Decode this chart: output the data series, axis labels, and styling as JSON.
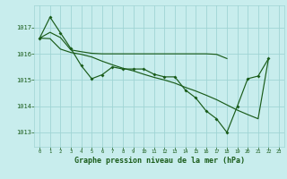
{
  "title": "Graphe pression niveau de la mer (hPa)",
  "bg_color": "#c8eded",
  "grid_color": "#a0d4d4",
  "line_color": "#1a5c1a",
  "xlim": [
    -0.5,
    23.5
  ],
  "ylim": [
    1012.45,
    1017.85
  ],
  "yticks": [
    1013,
    1014,
    1015,
    1016,
    1017
  ],
  "xticks": [
    0,
    1,
    2,
    3,
    4,
    5,
    6,
    7,
    8,
    9,
    10,
    11,
    12,
    13,
    14,
    15,
    16,
    17,
    18,
    19,
    20,
    21,
    22,
    23
  ],
  "series_main": [
    1016.6,
    1017.4,
    1016.8,
    1016.2,
    1015.55,
    1015.05,
    1015.2,
    1015.5,
    1015.42,
    1015.42,
    1015.42,
    1015.22,
    1015.12,
    1015.12,
    1014.62,
    1014.32,
    1013.82,
    1013.52,
    1013.0,
    1014.0,
    1015.05,
    1015.15,
    1015.82,
    null
  ],
  "series_flat": [
    1016.6,
    1016.82,
    1016.62,
    1016.15,
    1016.08,
    1016.02,
    1016.0,
    1016.0,
    1016.0,
    1016.0,
    1016.0,
    1016.0,
    1016.0,
    1016.0,
    1016.0,
    1016.0,
    1016.0,
    1015.98,
    1015.82,
    null,
    null,
    null,
    null,
    null
  ],
  "series_trend": [
    1016.6,
    1016.58,
    1016.18,
    1016.05,
    1015.98,
    1015.88,
    1015.72,
    1015.58,
    1015.45,
    1015.35,
    1015.22,
    1015.1,
    1015.0,
    1014.88,
    1014.72,
    1014.58,
    1014.42,
    1014.25,
    1014.05,
    1013.85,
    1013.68,
    1013.52,
    1015.82,
    null
  ]
}
